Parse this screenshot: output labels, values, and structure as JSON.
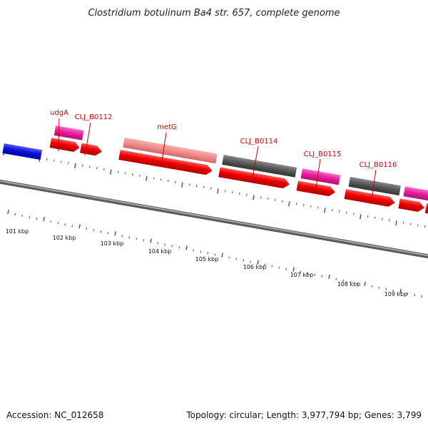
{
  "title": "Clostridium botulinum Ba4 str. 657, complete genome",
  "footer": {
    "accession": "Accession: NC_012658",
    "summary": "Topology: circular; Length: 3,977,794 bp; Genes: 3,799"
  },
  "colors": {
    "backbone": "#8a8a8a",
    "cds": "#ee0000",
    "rrna": "#e8209c",
    "gene_light": "#ef8a8a",
    "gene_gray": "#5a5a5a",
    "blue_feature": "#1010dd",
    "ticks": "#2a8a2a",
    "label": "#cc0000"
  },
  "gene_labels": [
    {
      "text": "udgA"
    },
    {
      "text": "CLJ_B0112"
    },
    {
      "text": "metG"
    },
    {
      "text": "CLJ_B0114"
    },
    {
      "text": "CLJ_B0115"
    },
    {
      "text": "CLJ_B0116"
    }
  ],
  "kbp_labels": [
    "101 kbp",
    "102 kbp",
    "103 kbp",
    "104 kbp",
    "105 kbp",
    "106 kbp",
    "107 kbp",
    "108 kbp",
    "109 kbp"
  ]
}
